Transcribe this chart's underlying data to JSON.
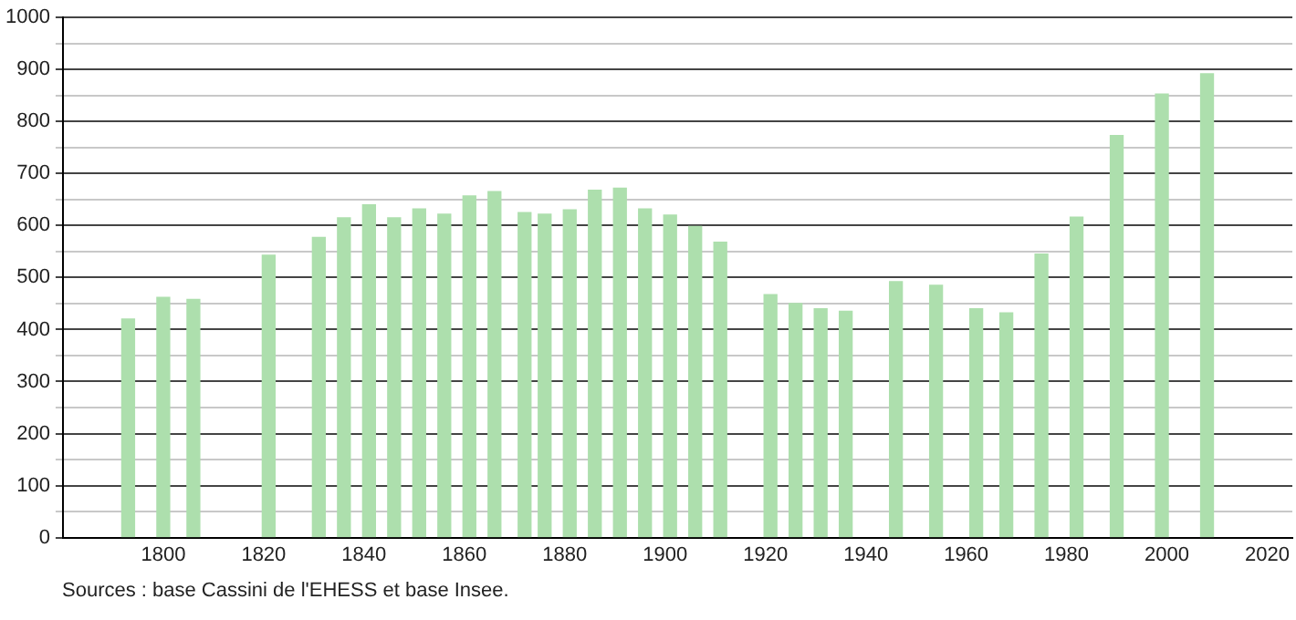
{
  "chart_data": {
    "type": "bar",
    "x": [
      1793,
      1800,
      1806,
      1821,
      1831,
      1836,
      1841,
      1846,
      1851,
      1856,
      1861,
      1866,
      1872,
      1876,
      1881,
      1886,
      1891,
      1896,
      1901,
      1906,
      1911,
      1921,
      1926,
      1931,
      1936,
      1946,
      1954,
      1962,
      1968,
      1975,
      1982,
      1990,
      1999,
      2008
    ],
    "values": [
      420,
      462,
      458,
      543,
      577,
      615,
      640,
      615,
      632,
      622,
      657,
      665,
      625,
      622,
      630,
      668,
      672,
      632,
      620,
      598,
      568,
      467,
      450,
      440,
      435,
      492,
      485,
      440,
      432,
      545,
      616,
      773,
      853,
      892
    ],
    "color": "#addfad",
    "xlim": [
      1780,
      2025
    ],
    "xticks": [
      1800,
      1820,
      1840,
      1860,
      1880,
      1900,
      1920,
      1940,
      1960,
      1980,
      2000,
      2020
    ],
    "ylim": [
      0,
      1000
    ],
    "yticks": [
      0,
      {
        "value": 50,
        "label": null
      },
      100,
      {
        "value": 150,
        "label": null
      },
      200,
      {
        "value": 250,
        "label": null
      },
      300,
      {
        "value": 350,
        "label": null
      },
      400,
      {
        "value": 450,
        "label": null
      },
      500,
      {
        "value": 550,
        "label": null
      },
      600,
      {
        "value": 650,
        "label": null
      },
      700,
      {
        "value": 750,
        "label": null
      },
      800,
      {
        "value": 850,
        "label": null
      },
      900,
      {
        "value": 950,
        "label": null
      },
      1000
    ],
    "grid": "y",
    "legend": false,
    "annotations": [
      "Sources : base Cassini de l'EHESS et base Insee."
    ]
  }
}
